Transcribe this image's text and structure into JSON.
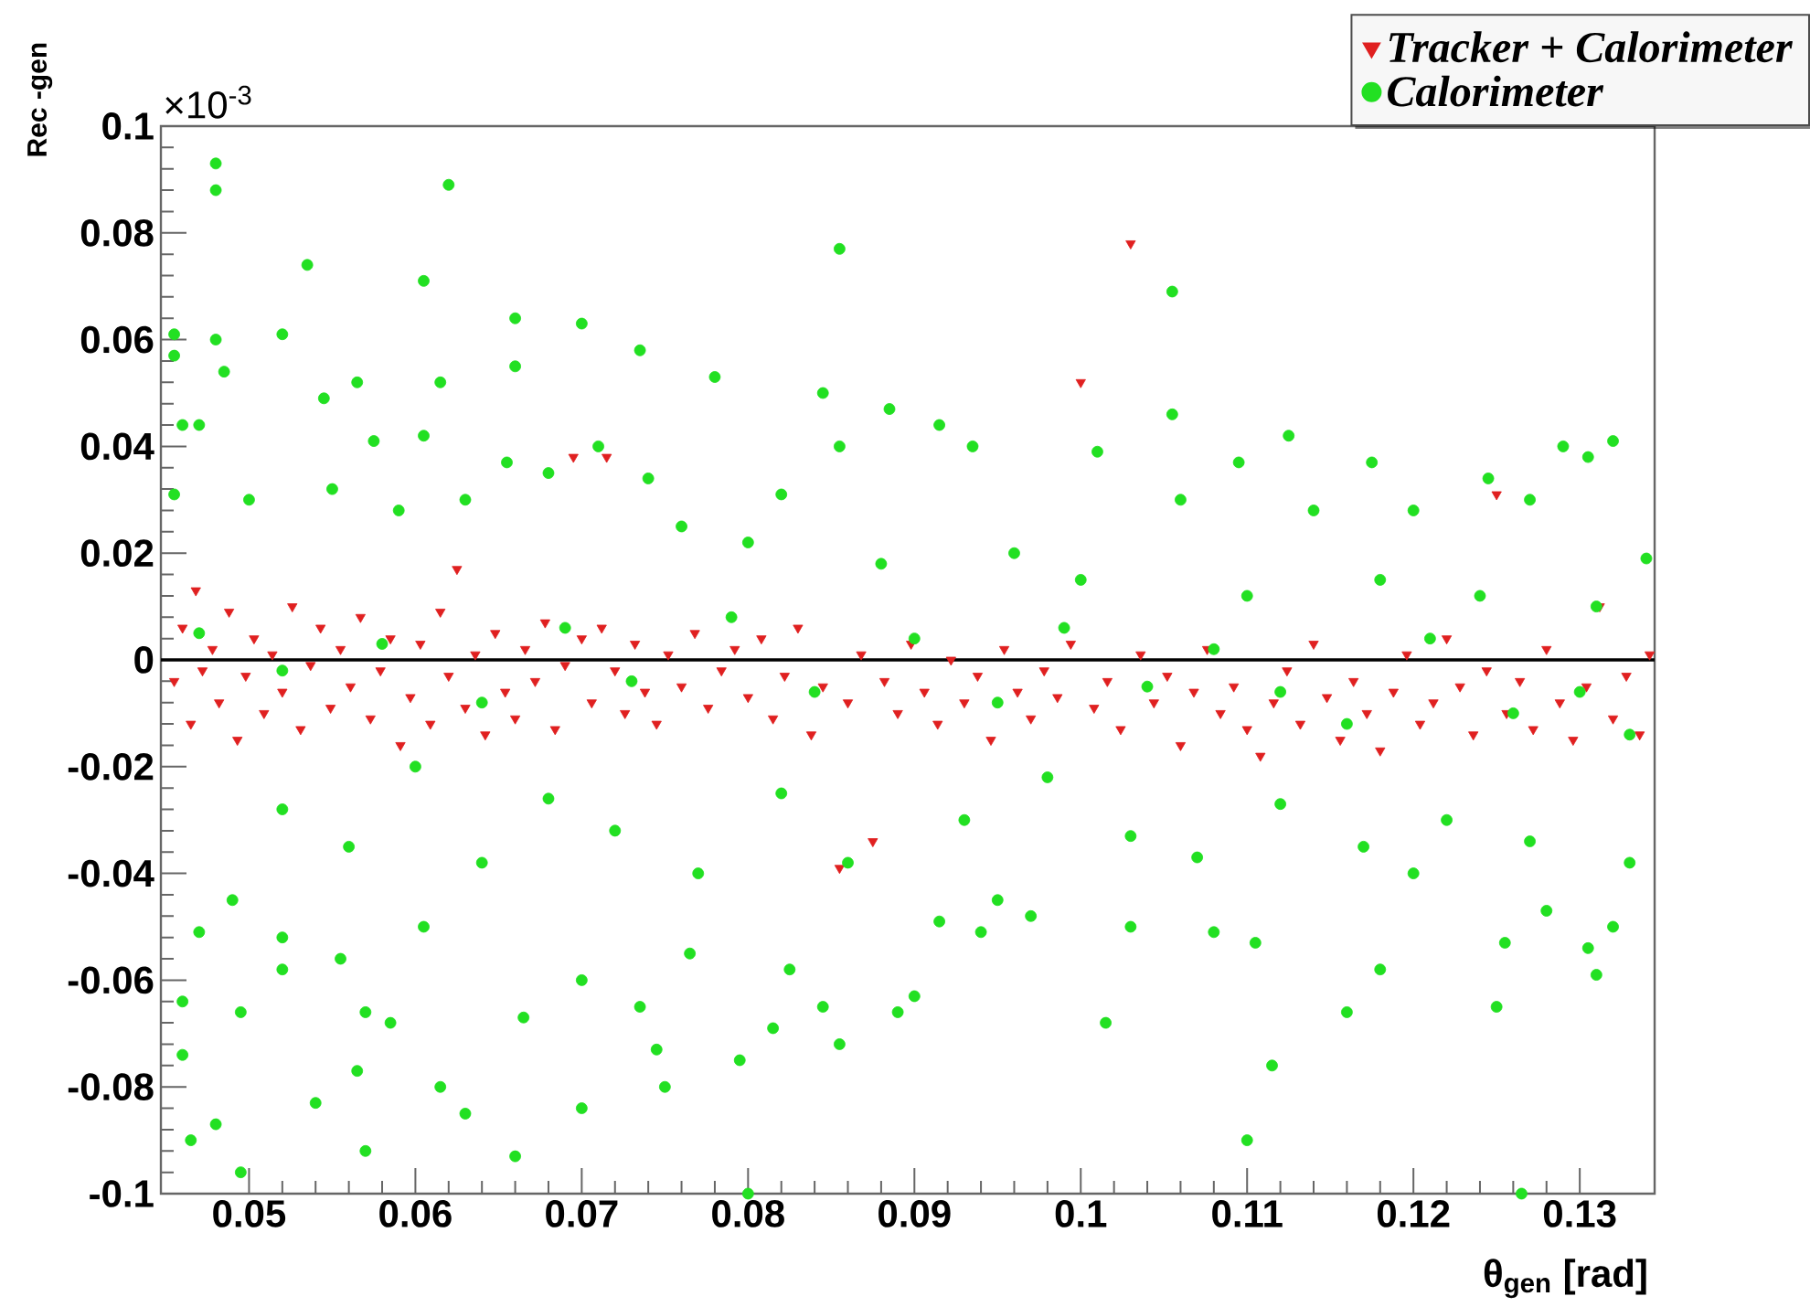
{
  "chart_data": {
    "type": "scatter",
    "xlabel": "θ$_{gen}$ [rad]",
    "ylabel": "Rec -gen",
    "annotations": [
      "×10$^{-3}$"
    ],
    "xlim": [
      0.0447,
      0.1345
    ],
    "ylim": [
      -0.1,
      0.1
    ],
    "xticks": [
      0.05,
      0.06,
      0.07,
      0.08,
      0.09,
      0.1,
      0.11,
      0.12,
      0.13
    ],
    "yticks": [
      -0.1,
      -0.08,
      -0.06,
      -0.04,
      -0.02,
      0,
      0.02,
      0.04,
      0.06,
      0.08,
      0.1
    ],
    "legend": "top right",
    "ref_lines": [
      {
        "axis": "y",
        "value": 0,
        "color": "#000000"
      }
    ],
    "series": [
      {
        "name": "*Tracker + Calorimeter*",
        "color": "#e02020",
        "marker": "triangle",
        "x": [
          0.0455,
          0.046,
          0.0465,
          0.0468,
          0.0472,
          0.0478,
          0.0482,
          0.0488,
          0.0493,
          0.0498,
          0.0503,
          0.0509,
          0.0514,
          0.052,
          0.0526,
          0.0531,
          0.0537,
          0.0543,
          0.0549,
          0.0555,
          0.0561,
          0.0567,
          0.0573,
          0.0579,
          0.0585,
          0.0591,
          0.0597,
          0.0603,
          0.0609,
          0.0615,
          0.062,
          0.0625,
          0.063,
          0.0636,
          0.0642,
          0.0648,
          0.0654,
          0.066,
          0.0666,
          0.0672,
          0.0678,
          0.0684,
          0.069,
          0.0695,
          0.07,
          0.0706,
          0.0712,
          0.0715,
          0.072,
          0.0726,
          0.0732,
          0.0738,
          0.0745,
          0.0752,
          0.076,
          0.0768,
          0.0776,
          0.0784,
          0.0792,
          0.08,
          0.0808,
          0.0815,
          0.0822,
          0.083,
          0.0838,
          0.0845,
          0.0855,
          0.086,
          0.0868,
          0.0875,
          0.0882,
          0.089,
          0.0898,
          0.0906,
          0.0914,
          0.0922,
          0.093,
          0.0938,
          0.0946,
          0.0954,
          0.0962,
          0.097,
          0.0978,
          0.0986,
          0.0994,
          0.1,
          0.1008,
          0.1016,
          0.1024,
          0.103,
          0.1036,
          0.1044,
          0.1052,
          0.106,
          0.1068,
          0.1076,
          0.1084,
          0.1092,
          0.11,
          0.1108,
          0.1116,
          0.1124,
          0.1132,
          0.114,
          0.1148,
          0.1156,
          0.1164,
          0.1172,
          0.118,
          0.1188,
          0.1196,
          0.1204,
          0.1212,
          0.122,
          0.1228,
          0.1236,
          0.1244,
          0.125,
          0.1256,
          0.1264,
          0.1272,
          0.128,
          0.1288,
          0.1296,
          0.1304,
          0.1312,
          0.132,
          0.1328,
          0.1336,
          0.1342
        ],
        "values": [
          -0.004,
          0.006,
          -0.012,
          0.013,
          -0.002,
          0.002,
          -0.008,
          0.009,
          -0.015,
          -0.003,
          0.004,
          -0.01,
          0.001,
          -0.006,
          0.01,
          -0.013,
          -0.001,
          0.006,
          -0.009,
          0.002,
          -0.005,
          0.008,
          -0.011,
          -0.002,
          0.004,
          -0.016,
          -0.007,
          0.003,
          -0.012,
          0.009,
          -0.003,
          0.017,
          -0.009,
          0.001,
          -0.014,
          0.005,
          -0.006,
          -0.011,
          0.002,
          -0.004,
          0.007,
          -0.013,
          -0.001,
          0.038,
          0.004,
          -0.008,
          0.006,
          0.038,
          -0.002,
          -0.01,
          0.003,
          -0.006,
          -0.012,
          0.001,
          -0.005,
          0.005,
          -0.009,
          -0.002,
          0.002,
          -0.007,
          0.004,
          -0.011,
          -0.003,
          0.006,
          -0.014,
          -0.005,
          -0.039,
          -0.008,
          0.001,
          -0.034,
          -0.004,
          -0.01,
          0.003,
          -0.006,
          -0.012,
          0.0,
          -0.008,
          -0.003,
          -0.015,
          0.002,
          -0.006,
          -0.011,
          -0.002,
          -0.007,
          0.003,
          0.052,
          -0.009,
          -0.004,
          -0.013,
          0.078,
          0.001,
          -0.008,
          -0.003,
          -0.016,
          -0.006,
          0.002,
          -0.01,
          -0.005,
          -0.013,
          -0.018,
          -0.008,
          -0.002,
          -0.012,
          0.003,
          -0.007,
          -0.015,
          -0.004,
          -0.01,
          -0.017,
          -0.006,
          0.001,
          -0.012,
          -0.008,
          0.004,
          -0.005,
          -0.014,
          -0.002,
          0.031,
          -0.01,
          -0.004,
          -0.013,
          0.002,
          -0.008,
          -0.015,
          -0.005,
          0.01,
          -0.011,
          -0.003,
          -0.014,
          0.001
        ]
      },
      {
        "name": "*Calorimeter*",
        "color": "#22e022",
        "marker": "circle",
        "x": [
          0.0455,
          0.0455,
          0.0455,
          0.048,
          0.048,
          0.048,
          0.0485,
          0.046,
          0.047,
          0.0535,
          0.052,
          0.0545,
          0.0565,
          0.0575,
          0.0605,
          0.062,
          0.0615,
          0.066,
          0.066,
          0.07,
          0.0735,
          0.078,
          0.0845,
          0.0855,
          0.0855,
          0.0885,
          0.1055,
          0.1055,
          0.101,
          0.0915,
          0.0935,
          0.1095,
          0.1125,
          0.1175,
          0.1245,
          0.129,
          0.132,
          0.1305,
          0.134,
          0.0605,
          0.0655,
          0.071,
          0.074,
          0.068,
          0.082,
          0.096,
          0.106,
          0.114,
          0.12,
          0.127,
          0.05,
          0.055,
          0.059,
          0.063,
          0.076,
          0.08,
          0.088,
          0.1,
          0.11,
          0.118,
          0.124,
          0.131,
          0.047,
          0.052,
          0.058,
          0.064,
          0.069,
          0.073,
          0.079,
          0.084,
          0.09,
          0.095,
          0.099,
          0.104,
          0.108,
          0.112,
          0.116,
          0.121,
          0.126,
          0.13,
          0.133,
          0.046,
          0.046,
          0.0465,
          0.048,
          0.0495,
          0.0495,
          0.047,
          0.049,
          0.052,
          0.052,
          0.054,
          0.0565,
          0.057,
          0.057,
          0.0555,
          0.0585,
          0.0615,
          0.063,
          0.0605,
          0.066,
          0.0665,
          0.07,
          0.07,
          0.0735,
          0.075,
          0.0745,
          0.0795,
          0.08,
          0.0765,
          0.0815,
          0.0825,
          0.0845,
          0.0855,
          0.089,
          0.09,
          0.0915,
          0.094,
          0.097,
          0.1015,
          0.103,
          0.108,
          0.1105,
          0.1115,
          0.11,
          0.116,
          0.118,
          0.125,
          0.1265,
          0.1305,
          0.131,
          0.132,
          0.1255,
          0.128,
          0.052,
          0.056,
          0.06,
          0.064,
          0.068,
          0.072,
          0.077,
          0.082,
          0.086,
          0.093,
          0.098,
          0.103,
          0.107,
          0.112,
          0.117,
          0.122,
          0.127,
          0.133,
          0.095,
          0.12
        ],
        "values": [
          0.061,
          0.057,
          0.031,
          0.093,
          0.088,
          0.06,
          0.054,
          0.044,
          0.044,
          0.074,
          0.061,
          0.049,
          0.052,
          0.041,
          0.071,
          0.089,
          0.052,
          0.064,
          0.055,
          0.063,
          0.058,
          0.053,
          0.05,
          0.077,
          0.04,
          0.047,
          0.069,
          0.046,
          0.039,
          0.044,
          0.04,
          0.037,
          0.042,
          0.037,
          0.034,
          0.04,
          0.041,
          0.038,
          0.019,
          0.042,
          0.037,
          0.04,
          0.034,
          0.035,
          0.031,
          0.02,
          0.03,
          0.028,
          0.028,
          0.03,
          0.03,
          0.032,
          0.028,
          0.03,
          0.025,
          0.022,
          0.018,
          0.015,
          0.012,
          0.015,
          0.012,
          0.01,
          0.005,
          -0.002,
          0.003,
          -0.008,
          0.006,
          -0.004,
          0.008,
          -0.006,
          0.004,
          -0.008,
          0.006,
          -0.005,
          0.002,
          -0.006,
          -0.012,
          0.004,
          -0.01,
          -0.006,
          -0.014,
          -0.064,
          -0.074,
          -0.09,
          -0.087,
          -0.096,
          -0.066,
          -0.051,
          -0.045,
          -0.052,
          -0.058,
          -0.083,
          -0.077,
          -0.092,
          -0.066,
          -0.056,
          -0.068,
          -0.08,
          -0.085,
          -0.05,
          -0.093,
          -0.067,
          -0.084,
          -0.06,
          -0.065,
          -0.08,
          -0.073,
          -0.075,
          -0.1,
          -0.055,
          -0.069,
          -0.058,
          -0.065,
          -0.072,
          -0.066,
          -0.063,
          -0.049,
          -0.051,
          -0.048,
          -0.068,
          -0.05,
          -0.051,
          -0.053,
          -0.076,
          -0.09,
          -0.066,
          -0.058,
          -0.065,
          -0.1,
          -0.054,
          -0.059,
          -0.05,
          -0.053,
          -0.047,
          -0.028,
          -0.035,
          -0.02,
          -0.038,
          -0.026,
          -0.032,
          -0.04,
          -0.025,
          -0.038,
          -0.03,
          -0.022,
          -0.033,
          -0.037,
          -0.027,
          -0.035,
          -0.03,
          -0.034,
          -0.038,
          -0.045,
          -0.04
        ]
      }
    ]
  }
}
